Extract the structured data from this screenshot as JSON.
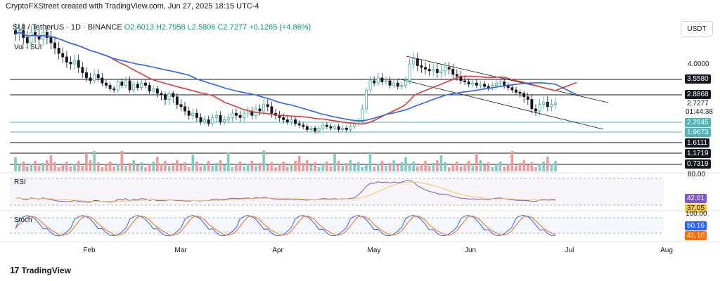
{
  "header": {
    "caption": "CryptoFXStreet created with TradingView.com, Jun 27, 2025 18:15 UTC-4"
  },
  "symbol": {
    "name": "SUI / TetherUS · 1D · BINANCE",
    "open": "O2.6013",
    "high": "H2.7958",
    "low": "L2.5806",
    "close": "C2.7277",
    "change": "+0.1265 (+4.86%)"
  },
  "volume_label": "Vol · SUI",
  "currency_button": "USDT",
  "price_axis": {
    "plain_ticks": [
      "4.0000"
    ],
    "tags": [
      {
        "text": "3.5580",
        "style": "black"
      },
      {
        "text": "2.8868",
        "style": "black"
      },
      {
        "text": "2.7277",
        "style": "plain"
      },
      {
        "text": "01:44:38",
        "style": "plain"
      },
      {
        "text": "2.2945",
        "style": "teal"
      },
      {
        "text": "1.9673",
        "style": "teal"
      },
      {
        "text": "1.6111",
        "style": "black"
      },
      {
        "text": "1.1719",
        "style": "black"
      },
      {
        "text": "0.7319",
        "style": "black"
      }
    ]
  },
  "rsi": {
    "label": "RSI",
    "axis_top": "80.00",
    "value_tag": "42.01",
    "ma_tag": "37.05"
  },
  "stoch": {
    "label": "Stoch",
    "axis_top": "100.00",
    "k_tag": "50.16",
    "d_tag": "41.10"
  },
  "x_axis": [
    "Feb",
    "Mar",
    "Apr",
    "May",
    "Jun",
    "Jul",
    "Aug"
  ],
  "branding": {
    "logo_text": "TradingView",
    "logo_mark": "17"
  },
  "colors": {
    "up": "#26a69a",
    "down": "#131722",
    "ma_red": "#e53935",
    "ma_blue": "#2962ff",
    "rsi": "#7e57c2",
    "rsi_ma": "#f7c948",
    "stoch_k": "#2962ff",
    "stoch_d": "#ff6d00",
    "level_black": "#131722",
    "level_teal": "#4fb6b8",
    "vol_up": "#80cbc4",
    "vol_down": "#ef9a9a"
  },
  "chart_data": {
    "type": "candlestick",
    "pair": "SUI/USDT",
    "timeframe": "1D",
    "x_range": [
      "2025-01-07",
      "2025-06-27"
    ],
    "y_range": [
      0.7319,
      4.3
    ],
    "last_close": 2.7277,
    "levels": [
      3.558,
      2.8868,
      2.2945,
      1.9673,
      1.6111,
      1.1719,
      0.7319
    ],
    "closes": [
      4.85,
      4.95,
      4.75,
      4.6,
      4.9,
      4.8,
      4.7,
      4.9,
      4.75,
      4.6,
      4.45,
      4.3,
      4.2,
      4.05,
      4.0,
      4.1,
      3.9,
      3.75,
      3.6,
      3.5,
      3.7,
      3.6,
      3.4,
      3.3,
      3.15,
      3.1,
      3.45,
      3.3,
      3.5,
      3.1,
      3.35,
      3.2,
      3.4,
      3.3,
      3.05,
      3.15,
      2.95,
      2.9,
      2.8,
      2.95,
      2.85,
      2.7,
      2.65,
      2.55,
      2.45,
      2.5,
      2.4,
      2.3,
      2.35,
      2.25,
      2.4,
      2.45,
      2.3,
      2.35,
      2.4,
      2.5,
      2.45,
      2.4,
      2.5,
      2.55,
      2.45,
      2.6,
      2.55,
      2.7,
      2.65,
      2.5,
      2.45,
      2.4,
      2.35,
      2.3,
      2.35,
      2.25,
      2.2,
      2.15,
      2.05,
      2.1,
      2.0,
      2.1,
      2.2,
      2.15,
      2.1,
      2.15,
      2.05,
      2.1,
      2.05,
      2.15,
      2.25,
      2.3,
      2.6,
      3.1,
      3.5,
      3.4,
      3.6,
      3.45,
      3.5,
      3.3,
      3.4,
      3.25,
      3.3,
      3.5,
      4.0,
      4.15,
      3.95,
      3.9,
      3.85,
      3.8,
      3.85,
      3.75,
      3.8,
      3.9,
      3.85,
      3.7,
      3.65,
      3.5,
      3.45,
      3.35,
      3.4,
      3.3,
      3.35,
      3.25,
      3.2,
      3.3,
      3.4,
      3.45,
      3.3,
      3.2,
      3.1,
      3.0,
      2.95,
      2.85,
      2.8,
      2.6,
      2.55,
      2.7,
      2.75,
      2.65,
      2.7,
      2.73
    ],
    "ma_red": {
      "name": "",
      "approx_values_start": 4.9,
      "approx_values_end": 3.4
    },
    "ma_blue": {
      "name": "",
      "approx_values_start": 3.9,
      "approx_values_end": 2.9
    }
  }
}
